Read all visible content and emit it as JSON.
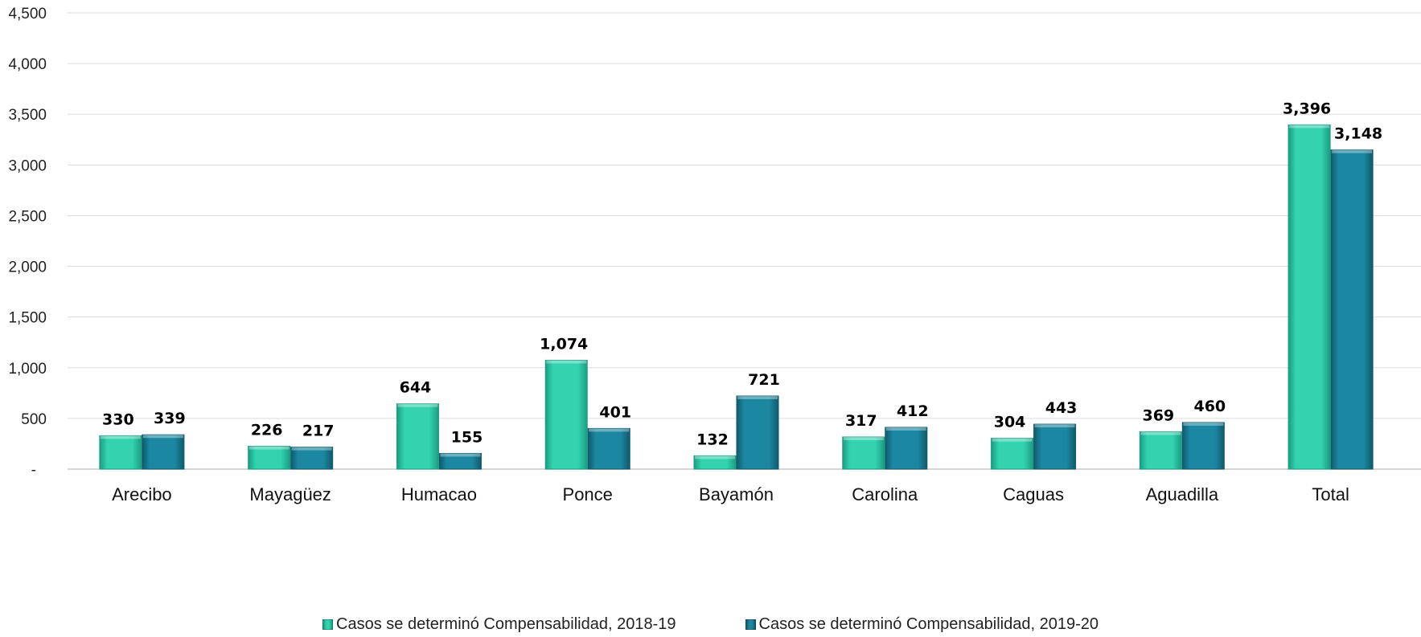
{
  "chart_data": {
    "type": "bar",
    "categories": [
      "Arecibo",
      "Mayagüez",
      "Humacao",
      "Ponce",
      "Bayamón",
      "Carolina",
      "Caguas",
      "Aguadilla",
      "Total"
    ],
    "series": [
      {
        "name": "Casos se determinó Compensabilidad, 2018-19",
        "values": [
          330,
          226,
          644,
          1074,
          132,
          317,
          304,
          369,
          3396
        ],
        "labels": [
          "330",
          "226",
          "644",
          "1,074",
          "132",
          "317",
          "304",
          "369",
          "3,396"
        ],
        "color": "#33d3b0",
        "color_dark": "#1a9c82"
      },
      {
        "name": "Casos se determinó Compensabilidad, 2019-20",
        "values": [
          339,
          217,
          155,
          401,
          721,
          412,
          443,
          460,
          3148
        ],
        "labels": [
          "339",
          "217",
          "155",
          "401",
          "721",
          "412",
          "443",
          "460",
          "3,148"
        ],
        "color": "#1b87a1",
        "color_dark": "#105a6c"
      }
    ],
    "ylim": [
      0,
      4500
    ],
    "yticks": [
      0,
      500,
      1000,
      1500,
      2000,
      2500,
      3000,
      3500,
      4000,
      4500
    ],
    "ytick_labels": [
      "-",
      "500",
      "1,000",
      "1,500",
      "2,000",
      "2,500",
      "3,000",
      "3,500",
      "4,000",
      "4,500"
    ],
    "grid": true,
    "legend_position": "bottom"
  }
}
